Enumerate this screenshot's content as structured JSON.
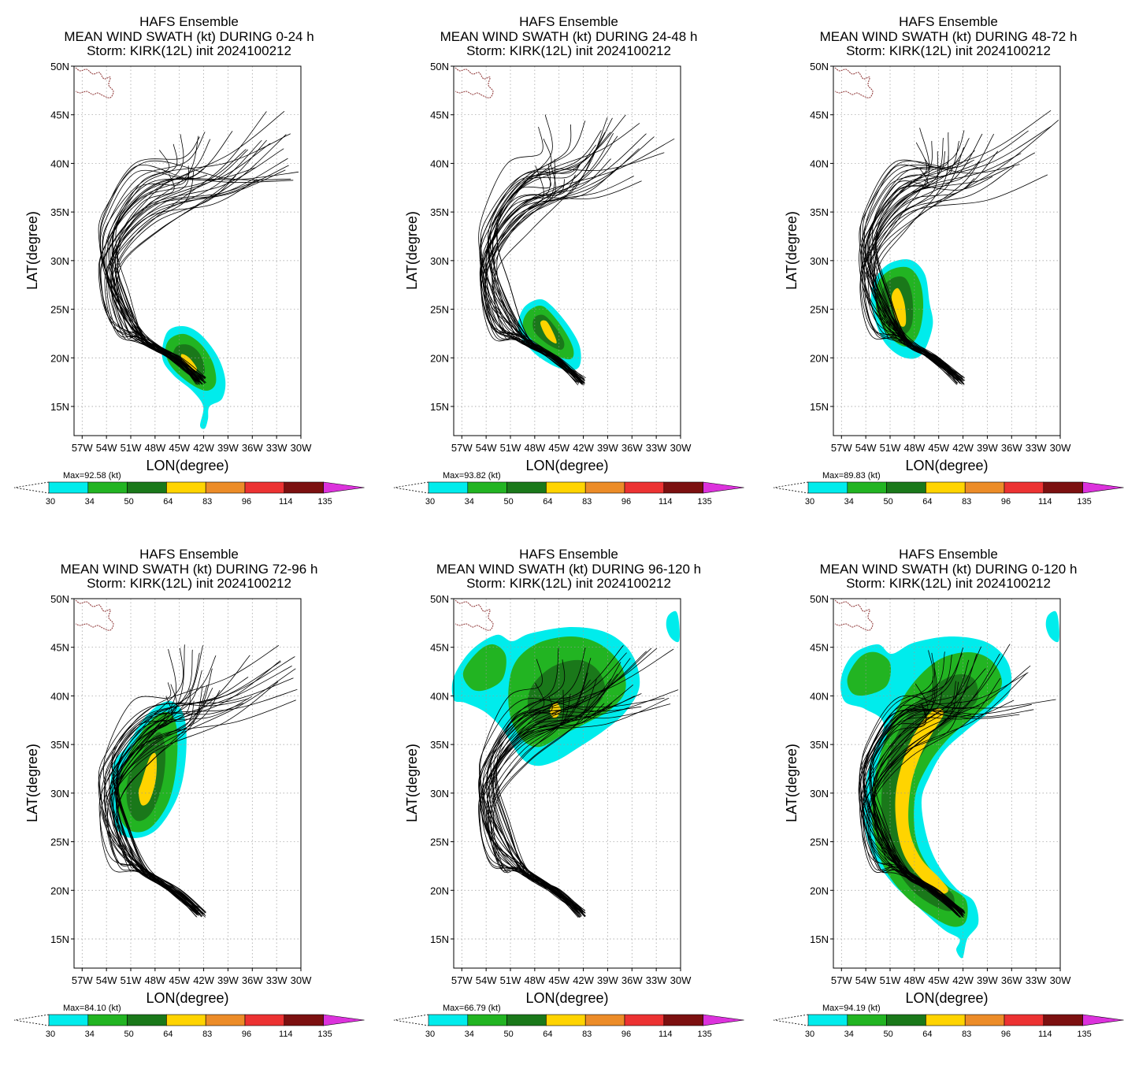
{
  "figure": {
    "panels": [
      {
        "title_lines": [
          "HAFS Ensemble",
          "MEAN WIND SWATH (kt) DURING  0-24 h",
          "Storm: KIRK(12L) init 2024100212"
        ],
        "max_label": "Max=92.58  (kt)",
        "swath": "p1"
      },
      {
        "title_lines": [
          "HAFS Ensemble",
          "MEAN WIND SWATH (kt) DURING 24-48 h",
          "Storm: KIRK(12L) init 2024100212"
        ],
        "max_label": "Max=93.82  (kt)",
        "swath": "p2"
      },
      {
        "title_lines": [
          "HAFS Ensemble",
          "MEAN WIND SWATH (kt) DURING 48-72 h",
          "Storm: KIRK(12L) init 2024100212"
        ],
        "max_label": "Max=89.83  (kt)",
        "swath": "p3"
      },
      {
        "title_lines": [
          "HAFS Ensemble",
          "MEAN WIND SWATH (kt) DURING 72-96 h",
          "Storm: KIRK(12L) init 2024100212"
        ],
        "max_label": "Max=84.10  (kt)",
        "swath": "p4"
      },
      {
        "title_lines": [
          "HAFS Ensemble",
          "MEAN WIND SWATH (kt) DURING 96-120 h",
          "Storm: KIRK(12L) init 2024100212"
        ],
        "max_label": "Max=66.79  (kt)",
        "swath": "p5"
      },
      {
        "title_lines": [
          "HAFS Ensemble",
          "MEAN WIND SWATH (kt) DURING 0-120 h",
          "Storm: KIRK(12L) init 2024100212"
        ],
        "max_label": "Max=94.19  (kt)",
        "swath": "p6"
      }
    ],
    "axes": {
      "xlabel": "LON(degree)",
      "ylabel": "LAT(degree)",
      "xticks": [
        "57W",
        "54W",
        "51W",
        "48W",
        "45W",
        "42W",
        "39W",
        "36W",
        "33W",
        "30W"
      ],
      "yticks": [
        "15N",
        "20N",
        "25N",
        "30N",
        "35N",
        "40N",
        "45N",
        "50N"
      ],
      "lon_range": [
        -58,
        -30
      ],
      "lat_range": [
        12,
        50
      ],
      "grid": "dotted"
    },
    "colorbar": {
      "levels": [
        "30",
        "34",
        "50",
        "64",
        "83",
        "96",
        "114",
        "135"
      ],
      "colors": [
        "#00ecec",
        "#22b422",
        "#1a781a",
        "#ffd400",
        "#ec8c28",
        "#ec3232",
        "#7c1010",
        "#dc32dc"
      ]
    },
    "track_color": "#000000",
    "coast_color": "#8c3232"
  }
}
